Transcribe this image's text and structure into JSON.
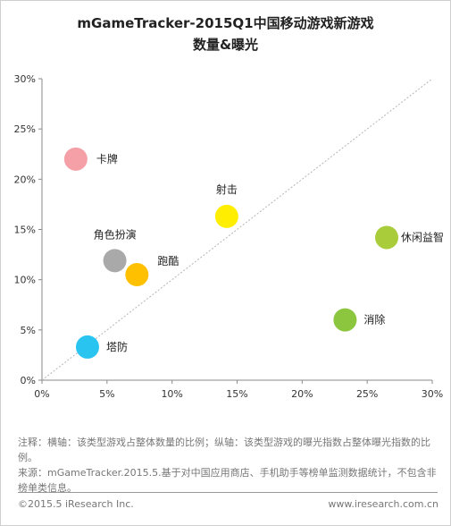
{
  "chart_data": {
    "type": "scatter",
    "title": "mGameTracker-2015Q1中国移动游戏新游戏",
    "subtitle": "数量&曝光",
    "xlim": [
      0,
      30
    ],
    "ylim": [
      0,
      30
    ],
    "xticks": [
      "0%",
      "5%",
      "10%",
      "15%",
      "20%",
      "25%",
      "30%"
    ],
    "yticks": [
      "0%",
      "5%",
      "10%",
      "15%",
      "20%",
      "25%",
      "30%"
    ],
    "grid": false,
    "reference_line": "y = x",
    "points": [
      {
        "label": "卡牌",
        "x": 2.6,
        "y": 22.0,
        "color": "#f4a0a6"
      },
      {
        "label": "射击",
        "x": 14.2,
        "y": 16.3,
        "color": "#ffee00"
      },
      {
        "label": "休闲益智",
        "x": 26.5,
        "y": 14.2,
        "color": "#a8cc3a"
      },
      {
        "label": "角色扮演",
        "x": 5.6,
        "y": 11.9,
        "color": "#a9a9a9"
      },
      {
        "label": "跑酷",
        "x": 7.3,
        "y": 10.5,
        "color": "#ffc000"
      },
      {
        "label": "消除",
        "x": 23.3,
        "y": 6.0,
        "color": "#8cc63f"
      },
      {
        "label": "塔防",
        "x": 3.5,
        "y": 3.3,
        "color": "#29c5f0"
      }
    ]
  },
  "notes": {
    "line1": "注释：横轴：该类型游戏占整体数量的比例；纵轴：该类型游戏的曝光指数占整体曝光指数的比例。",
    "line2": "来源：mGameTracker.2015.5.基于对中国应用商店、手机助手等榜单监测数据统计，不包含非榜单类信息。"
  },
  "footer": {
    "copyright": "©2015.5 iResearch Inc.",
    "website": "www.iresearch.com.cn"
  }
}
